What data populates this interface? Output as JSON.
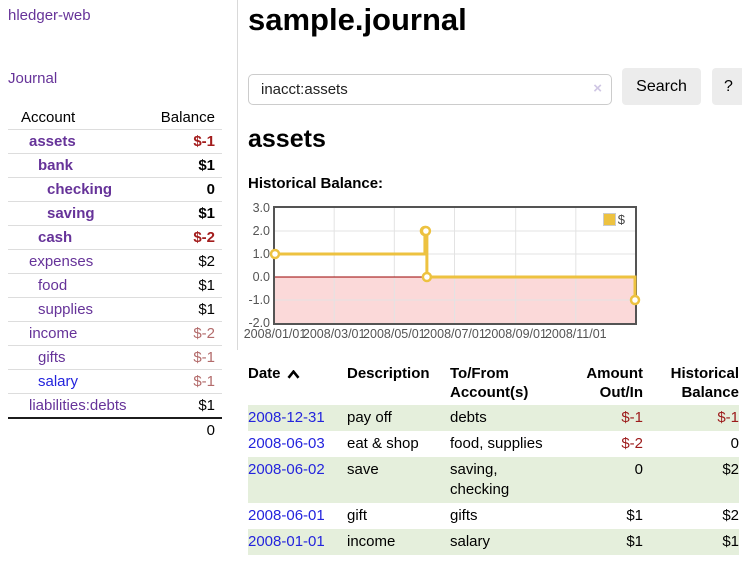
{
  "brand": "hledger-web",
  "nav": {
    "journal": "Journal"
  },
  "sidebar": {
    "headers": {
      "account": "Account",
      "balance": "Balance"
    },
    "accounts": [
      {
        "name": "assets",
        "balance": "$-1",
        "depth": 1,
        "bold": true,
        "balance_tone": "neg-strong"
      },
      {
        "name": "bank",
        "balance": "$1",
        "depth": 2,
        "bold": true,
        "balance_tone": "pos"
      },
      {
        "name": "checking",
        "balance": "0",
        "depth": 3,
        "bold": true,
        "balance_tone": "pos"
      },
      {
        "name": "saving",
        "balance": "$1",
        "depth": 3,
        "bold": true,
        "balance_tone": "pos"
      },
      {
        "name": "cash",
        "balance": "$-2",
        "depth": 2,
        "bold": true,
        "balance_tone": "neg-strong"
      },
      {
        "name": "expenses",
        "balance": "$2",
        "depth": 1,
        "bold": false,
        "balance_tone": "pos"
      },
      {
        "name": "food",
        "balance": "$1",
        "depth": 2,
        "bold": false,
        "balance_tone": "pos"
      },
      {
        "name": "supplies",
        "balance": "$1",
        "depth": 2,
        "bold": false,
        "balance_tone": "pos"
      },
      {
        "name": "income",
        "balance": "$-2",
        "depth": 1,
        "bold": false,
        "balance_tone": "neg-soft"
      },
      {
        "name": "gifts",
        "balance": "$-1",
        "depth": 2,
        "bold": false,
        "balance_tone": "neg-soft"
      },
      {
        "name": "salary",
        "balance": "$-1",
        "depth": 2,
        "bold": false,
        "balance_tone": "neg-soft",
        "link_color": "blue"
      },
      {
        "name": "liabilities:debts",
        "balance": "$1",
        "depth": 1,
        "bold": false,
        "balance_tone": "pos"
      }
    ],
    "total": "0"
  },
  "main": {
    "title": "sample.journal",
    "search": {
      "value": "inacct:assets",
      "clear": "×",
      "button": "Search",
      "help": "?"
    },
    "account_heading": "assets",
    "chart_title": "Historical Balance:"
  },
  "chart_data": {
    "type": "line",
    "title": "Historical Balance:",
    "legend": [
      {
        "label": "$",
        "color": "#edc240"
      }
    ],
    "legend_position": "top-right",
    "grid": true,
    "ylim": [
      -2,
      3
    ],
    "yticks": [
      "3.0",
      "2.0",
      "1.0",
      "0.0",
      "-1.0",
      "-2.0"
    ],
    "ytick_values": [
      3,
      2,
      1,
      0,
      -1,
      -2
    ],
    "xlim_days": [
      0,
      365
    ],
    "x_unit": "days since 2008-01-01",
    "xticks": [
      {
        "label": "2008/01/01",
        "day": 0
      },
      {
        "label": "2008/03/01",
        "day": 60
      },
      {
        "label": "2008/05/01",
        "day": 121
      },
      {
        "label": "2008/07/01",
        "day": 182
      },
      {
        "label": "2008/09/01",
        "day": 244
      },
      {
        "label": "2008/11/01",
        "day": 305
      }
    ],
    "series": [
      {
        "name": "$",
        "color": "#edc240",
        "step": true,
        "points": [
          {
            "date": "2008-01-01",
            "day": 0,
            "value": 1
          },
          {
            "date": "2008-06-01",
            "day": 152,
            "value": 2
          },
          {
            "date": "2008-06-02",
            "day": 153,
            "value": 2
          },
          {
            "date": "2008-06-03",
            "day": 154,
            "value": 0
          },
          {
            "date": "2008-12-31",
            "day": 365,
            "value": -1
          }
        ]
      }
    ],
    "negative_region": {
      "from": 0,
      "to": -2,
      "fill": "#fbd9d9",
      "zero_line": "#990000"
    },
    "gridline_color": "#e3e3e3",
    "border_color": "#545454"
  },
  "register": {
    "headers": {
      "date": "Date",
      "description": "Description",
      "accounts_l1": "To/From",
      "accounts_l2": "Account(s)",
      "amount_l1": "Amount",
      "amount_l2": "Out/In",
      "balance_l1": "Historical",
      "balance_l2": "Balance"
    },
    "rows": [
      {
        "date": "2008-12-31",
        "description": "pay off",
        "accounts": "debts",
        "amount": "$-1",
        "amount_tone": "neg",
        "balance": "$-1",
        "balance_tone": "neg"
      },
      {
        "date": "2008-06-03",
        "description": "eat & shop",
        "accounts": "food, supplies",
        "amount": "$-2",
        "amount_tone": "neg",
        "balance": "0",
        "balance_tone": "pos"
      },
      {
        "date": "2008-06-02",
        "description": "save",
        "accounts": "saving, checking",
        "amount": "0",
        "amount_tone": "pos",
        "balance": "$2",
        "balance_tone": "pos"
      },
      {
        "date": "2008-06-01",
        "description": "gift",
        "accounts": "gifts",
        "amount": "$1",
        "amount_tone": "pos",
        "balance": "$2",
        "balance_tone": "pos"
      },
      {
        "date": "2008-01-01",
        "description": "income",
        "accounts": "salary",
        "amount": "$1",
        "amount_tone": "pos",
        "balance": "$1",
        "balance_tone": "pos"
      }
    ]
  },
  "colors": {
    "link_purple": "#663399",
    "link_blue": "#2424dd",
    "negative_strong": "#a31d1d",
    "negative_soft": "#b36b6b",
    "negative_table": "#9c1a1a",
    "row_stripe_green": "#e5efdc",
    "chart_line_yellow": "#edc240"
  }
}
